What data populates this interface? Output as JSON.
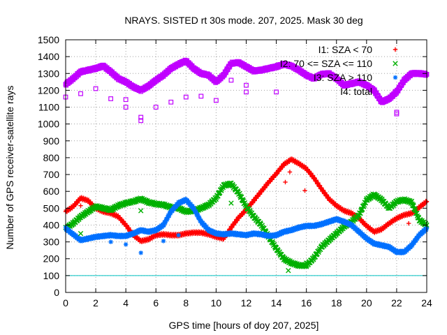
{
  "chart_data": {
    "type": "scatter",
    "title": "NRAYS. SISTED rt 30s mode. 207, 2025. Mask 30 deg",
    "xlabel": "GPS time [hours of doy 207, 2025]",
    "ylabel": "Number of GPS receiver-satellite rays",
    "xlim": [
      0,
      24
    ],
    "ylim": [
      0,
      1500
    ],
    "xticks": [
      0,
      2,
      4,
      6,
      8,
      10,
      12,
      14,
      16,
      18,
      20,
      22,
      24
    ],
    "yticks": [
      0,
      100,
      200,
      300,
      400,
      500,
      600,
      700,
      800,
      900,
      1000,
      1100,
      1200,
      1300,
      1400,
      1500
    ],
    "grid": true,
    "legend_position": "top-right",
    "reference_line": {
      "y": 100,
      "color": "#00c0c0"
    },
    "series": [
      {
        "name": "I1: SZA < 70",
        "marker": "+",
        "color": "#ff0000",
        "x": [
          0,
          0.5,
          1,
          1.5,
          2,
          2.5,
          3,
          3.5,
          4,
          4.5,
          5,
          5.5,
          6,
          6.5,
          7,
          7.5,
          8,
          8.5,
          9,
          9.5,
          10,
          10.5,
          11,
          11.5,
          12,
          12.5,
          13,
          13.5,
          14,
          14.5,
          15,
          15.5,
          16,
          16.5,
          17,
          17.5,
          18,
          18.5,
          19,
          19.5,
          20,
          20.5,
          21,
          21.5,
          22,
          22.5,
          23,
          23.5,
          24
        ],
        "values": [
          480,
          510,
          560,
          545,
          500,
          480,
          470,
          450,
          400,
          340,
          305,
          315,
          340,
          345,
          340,
          340,
          350,
          355,
          355,
          345,
          330,
          320,
          385,
          445,
          490,
          545,
          600,
          655,
          705,
          760,
          790,
          765,
          735,
          680,
          615,
          555,
          515,
          485,
          470,
          440,
          395,
          360,
          375,
          410,
          440,
          460,
          470,
          505,
          540
        ]
      },
      {
        "name": "I2: 70 <= SZA <= 110",
        "marker": "x",
        "color": "#00b000",
        "x": [
          0,
          0.5,
          1,
          1.5,
          2,
          2.5,
          3,
          3.5,
          4,
          4.5,
          5,
          5.5,
          6,
          6.5,
          7,
          7.5,
          8,
          8.5,
          9,
          9.5,
          10,
          10.5,
          11,
          11.5,
          12,
          12.5,
          13,
          13.5,
          14,
          14.5,
          15,
          15.5,
          16,
          16.5,
          17,
          17.5,
          18,
          18.5,
          19,
          19.5,
          20,
          20.5,
          21,
          21.5,
          22,
          22.5,
          23,
          23.5,
          24
        ],
        "values": [
          380,
          410,
          450,
          480,
          510,
          500,
          490,
          515,
          530,
          540,
          555,
          535,
          525,
          520,
          505,
          500,
          480,
          485,
          500,
          520,
          560,
          635,
          645,
          590,
          510,
          450,
          400,
          330,
          260,
          200,
          175,
          160,
          160,
          205,
          270,
          310,
          350,
          390,
          420,
          460,
          550,
          580,
          550,
          500,
          540,
          550,
          535,
          430,
          400
        ]
      },
      {
        "name": "I3: SZA > 110",
        "marker": "*",
        "color": "#0070ff",
        "x": [
          0,
          0.5,
          1,
          1.5,
          2,
          2.5,
          3,
          3.5,
          4,
          4.5,
          5,
          5.5,
          6,
          6.5,
          7,
          7.5,
          8,
          8.5,
          9,
          9.5,
          10,
          10.5,
          11,
          11.5,
          12,
          12.5,
          13,
          13.5,
          14,
          14.5,
          15,
          15.5,
          16,
          16.5,
          17,
          17.5,
          18,
          18.5,
          19,
          19.5,
          20,
          20.5,
          21,
          21.5,
          22,
          22.5,
          23,
          23.5,
          24
        ],
        "values": [
          380,
          345,
          310,
          320,
          330,
          335,
          340,
          335,
          335,
          350,
          370,
          360,
          370,
          400,
          480,
          530,
          550,
          500,
          420,
          370,
          350,
          345,
          350,
          345,
          340,
          350,
          345,
          335,
          340,
          360,
          370,
          385,
          395,
          395,
          405,
          420,
          435,
          420,
          400,
          360,
          320,
          290,
          280,
          270,
          240,
          240,
          280,
          340,
          380
        ]
      },
      {
        "name": "I4: total",
        "marker": "square",
        "color": "#c000ff",
        "x": [
          0,
          0.5,
          1,
          1.5,
          2,
          2.5,
          3,
          3.5,
          4,
          4.5,
          5,
          5.5,
          6,
          6.5,
          7,
          7.5,
          8,
          8.5,
          9,
          9.5,
          10,
          10.5,
          11,
          11.5,
          12,
          12.5,
          13,
          13.5,
          14,
          14.5,
          15,
          15.5,
          16,
          16.5,
          17,
          17.5,
          18,
          18.5,
          19,
          19.5,
          20,
          20.5,
          21,
          21.5,
          22,
          22.5,
          23,
          23.5,
          24
        ],
        "values": [
          1235,
          1270,
          1310,
          1320,
          1330,
          1345,
          1310,
          1270,
          1250,
          1220,
          1200,
          1225,
          1260,
          1290,
          1330,
          1355,
          1375,
          1330,
          1300,
          1290,
          1250,
          1290,
          1360,
          1365,
          1340,
          1315,
          1320,
          1330,
          1340,
          1355,
          1345,
          1320,
          1290,
          1270,
          1295,
          1300,
          1270,
          1230,
          1240,
          1250,
          1230,
          1200,
          1130,
          1150,
          1190,
          1260,
          1300,
          1300,
          1295
        ]
      }
    ],
    "outliers": [
      {
        "series": "I1: SZA < 70",
        "x": [
          1.0,
          14.6,
          14.9,
          15.9,
          22.8
        ],
        "values": [
          515,
          655,
          715,
          605,
          410
        ]
      },
      {
        "series": "I2: 70 <= SZA <= 110",
        "x": [
          1.0,
          5.0,
          11.0,
          14.8,
          16.0
        ],
        "values": [
          350,
          485,
          530,
          130,
          175
        ]
      },
      {
        "series": "I3: SZA > 110",
        "x": [
          2.0,
          3.0,
          4.0,
          5.0,
          6.5,
          7.5
        ],
        "values": [
          330,
          300,
          285,
          235,
          305,
          340
        ]
      },
      {
        "series": "I4: total",
        "x": [
          0.0,
          1.0,
          2.0,
          3.0,
          4.0,
          4.0,
          5.0,
          5.0,
          6.0,
          7.0,
          8.0,
          9.0,
          10.0,
          11.0,
          12.0,
          12.0,
          14.0,
          22.0,
          22.0
        ],
        "values": [
          1160,
          1180,
          1210,
          1150,
          1100,
          1145,
          1020,
          1040,
          1100,
          1130,
          1160,
          1165,
          1140,
          1260,
          1190,
          1230,
          1190,
          1060,
          1070
        ]
      }
    ]
  }
}
